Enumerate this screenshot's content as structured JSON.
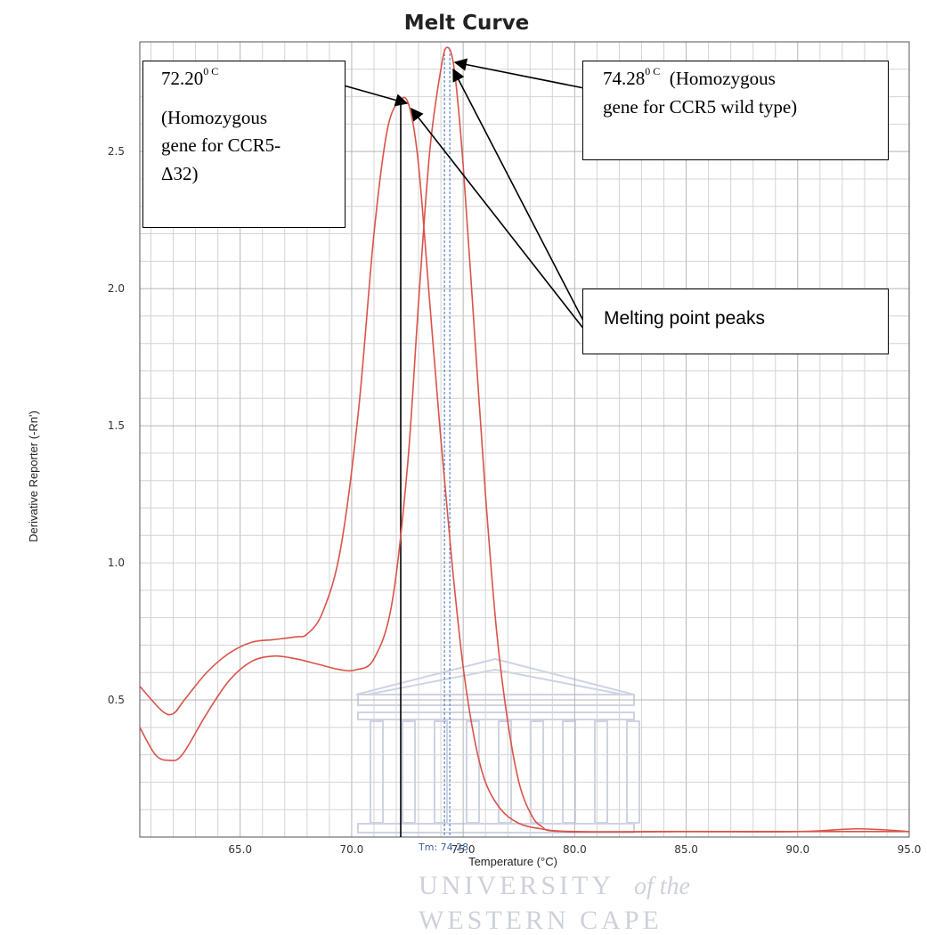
{
  "chart_data": {
    "type": "line",
    "title": "Melt Curve",
    "xlabel": "Temperature (°C)",
    "ylabel": "Derivative Reporter (-Rn')",
    "xlim": [
      60.5,
      95.0
    ],
    "ylim": [
      0.0,
      2.9
    ],
    "x_ticks": [
      "65.0",
      "70.0",
      "75.0",
      "80.0",
      "85.0",
      "90.0",
      "95.0"
    ],
    "y_ticks": [
      "0.5",
      "1.0",
      "1.5",
      "2.0",
      "2.5"
    ],
    "grid": true,
    "line_color": "#d9534a",
    "series": [
      {
        "x": [
          60.5,
          61.5,
          62.0,
          62.5,
          63.5,
          64.5,
          65.5,
          66.5,
          67.5,
          68.0,
          68.7,
          69.5,
          70.3,
          71.0,
          71.6,
          72.2,
          72.6,
          73.0,
          73.5,
          74.0,
          74.5,
          75.0,
          75.5,
          76.0,
          76.7,
          77.5,
          78.5,
          80.0,
          85.0,
          90.0,
          92.7,
          95.0
        ],
        "y": [
          0.55,
          0.46,
          0.45,
          0.5,
          0.6,
          0.67,
          0.71,
          0.72,
          0.73,
          0.74,
          0.82,
          1.05,
          1.55,
          2.2,
          2.58,
          2.69,
          2.66,
          2.45,
          1.95,
          1.45,
          1.0,
          0.62,
          0.36,
          0.2,
          0.1,
          0.05,
          0.03,
          0.02,
          0.02,
          0.02,
          0.03,
          0.02
        ]
      },
      {
        "x": [
          60.5,
          61.2,
          61.8,
          62.4,
          63.5,
          64.5,
          65.5,
          66.5,
          67.5,
          68.5,
          69.5,
          70.2,
          71.0,
          71.8,
          72.5,
          73.0,
          73.5,
          74.0,
          74.28,
          74.6,
          75.0,
          75.5,
          76.0,
          76.5,
          77.0,
          77.5,
          78.0,
          78.5,
          79.5,
          85.0,
          90.0,
          95.0
        ],
        "y": [
          0.4,
          0.3,
          0.28,
          0.3,
          0.45,
          0.57,
          0.64,
          0.66,
          0.65,
          0.63,
          0.61,
          0.61,
          0.65,
          0.85,
          1.35,
          1.95,
          2.5,
          2.8,
          2.88,
          2.8,
          2.45,
          1.85,
          1.25,
          0.75,
          0.42,
          0.2,
          0.09,
          0.04,
          0.02,
          0.02,
          0.02,
          0.02
        ]
      }
    ],
    "markers": {
      "black_line_x": 72.2,
      "tm_line_x": 74.28,
      "tm_label": "Tm: 74.28"
    },
    "annotations": {
      "peak1_value": "72.20",
      "peak1_sup": "0 C",
      "peak1_desc_1": "(Homozygous",
      "peak1_desc_2": "gene for CCR5-",
      "peak1_desc_3": "Δ32)",
      "peak2_value": "74.28",
      "peak2_sup": "0 C",
      "peak2_desc_1": "(Homozygous",
      "peak2_desc_2": "gene for CCR5 wild type)",
      "melting_label": "Melting point peaks"
    },
    "watermark": {
      "line1": "UNIVERSITY",
      "line1_suffix": "of the",
      "line2": "WESTERN CAPE"
    }
  }
}
